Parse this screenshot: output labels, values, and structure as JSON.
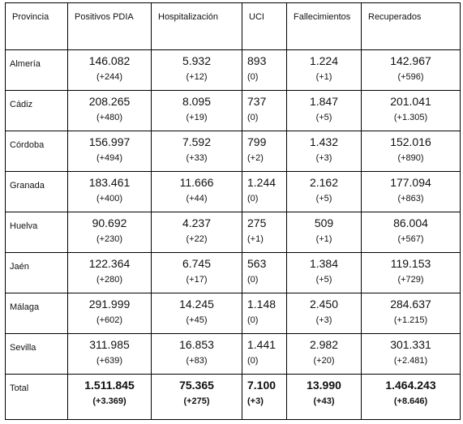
{
  "headers": [
    "Provincia",
    "Positivos PDIA",
    "Hospitalización",
    "UCI",
    "Fallecimientos",
    "Recuperados"
  ],
  "rows": [
    {
      "provincia": "Almería",
      "cells": [
        {
          "value": "146.082",
          "change": "(+244)"
        },
        {
          "value": "5.932",
          "change": "(+12)"
        },
        {
          "value": "893",
          "change": "(0)"
        },
        {
          "value": "1.224",
          "change": "(+1)"
        },
        {
          "value": "142.967",
          "change": "(+596)"
        }
      ]
    },
    {
      "provincia": "Cádiz",
      "cells": [
        {
          "value": "208.265",
          "change": "(+480)"
        },
        {
          "value": "8.095",
          "change": "(+19)"
        },
        {
          "value": "737",
          "change": "(0)"
        },
        {
          "value": "1.847",
          "change": "(+5)"
        },
        {
          "value": "201.041",
          "change": "(+1.305)"
        }
      ]
    },
    {
      "provincia": "Córdoba",
      "cells": [
        {
          "value": "156.997",
          "change": "(+494)"
        },
        {
          "value": "7.592",
          "change": "(+33)"
        },
        {
          "value": "799",
          "change": "(+2)"
        },
        {
          "value": "1.432",
          "change": "(+3)"
        },
        {
          "value": "152.016",
          "change": "(+890)"
        }
      ]
    },
    {
      "provincia": "Granada",
      "cells": [
        {
          "value": "183.461",
          "change": "(+400)"
        },
        {
          "value": "11.666",
          "change": "(+44)"
        },
        {
          "value": "1.244",
          "change": "(0)"
        },
        {
          "value": "2.162",
          "change": "(+5)"
        },
        {
          "value": "177.094",
          "change": "(+863)"
        }
      ]
    },
    {
      "provincia": "Huelva",
      "cells": [
        {
          "value": "90.692",
          "change": "(+230)"
        },
        {
          "value": "4.237",
          "change": "(+22)"
        },
        {
          "value": "275",
          "change": "(+1)"
        },
        {
          "value": "509",
          "change": "(+1)"
        },
        {
          "value": "86.004",
          "change": "(+567)"
        }
      ]
    },
    {
      "provincia": "Jaén",
      "cells": [
        {
          "value": "122.364",
          "change": "(+280)"
        },
        {
          "value": "6.745",
          "change": "(+17)"
        },
        {
          "value": "563",
          "change": "(0)"
        },
        {
          "value": "1.384",
          "change": "(+5)"
        },
        {
          "value": "119.153",
          "change": "(+729)"
        }
      ]
    },
    {
      "provincia": "Málaga",
      "cells": [
        {
          "value": "291.999",
          "change": "(+602)"
        },
        {
          "value": "14.245",
          "change": "(+45)"
        },
        {
          "value": "1.148",
          "change": "(0)"
        },
        {
          "value": "2.450",
          "change": "(+3)"
        },
        {
          "value": "284.637",
          "change": "(+1.215)"
        }
      ]
    },
    {
      "provincia": "Sevilla",
      "cells": [
        {
          "value": "311.985",
          "change": "(+639)"
        },
        {
          "value": "16.853",
          "change": "(+83)"
        },
        {
          "value": "1.441",
          "change": "(0)"
        },
        {
          "value": "2.982",
          "change": "(+20)"
        },
        {
          "value": "301.331",
          "change": "(+2.481)"
        }
      ]
    }
  ],
  "total": {
    "label": "Total",
    "cells": [
      {
        "value": "1.511.845",
        "change": "(+3.369)"
      },
      {
        "value": "75.365",
        "change": "(+275)"
      },
      {
        "value": "7.100",
        "change": "(+3)"
      },
      {
        "value": "13.990",
        "change": "(+43)"
      },
      {
        "value": "1.464.243",
        "change": "(+8.646)"
      }
    ]
  }
}
